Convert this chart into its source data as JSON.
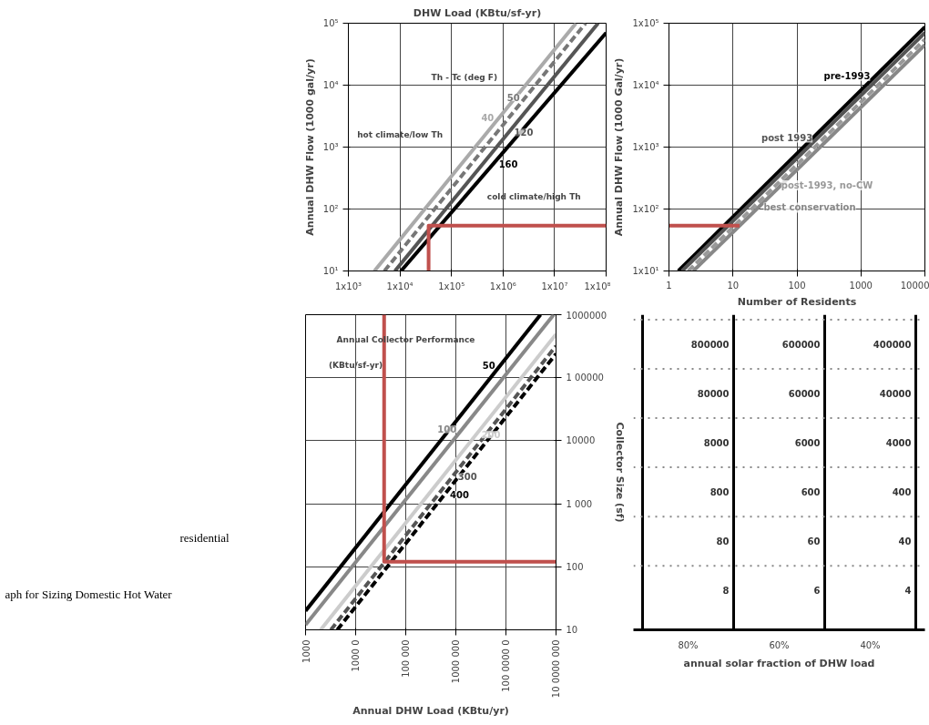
{
  "chart_data": [
    {
      "type": "line",
      "title": "DHW Load (KBtu/sf-yr)",
      "ylabel": "Annual DHW Flow (1000 gal/yr)",
      "log": "xy",
      "grid": true,
      "line_style": "solid",
      "xlim": [
        1000,
        100000000
      ],
      "ylim": [
        10,
        100000
      ],
      "xticks": [
        {
          "value": 1000,
          "label": "1x10³"
        },
        {
          "value": 10000,
          "label": "1x10⁴"
        },
        {
          "value": 100000,
          "label": "1x10⁵"
        },
        {
          "value": 1000000,
          "label": "1x10⁶"
        },
        {
          "value": 10000000,
          "label": "1x10⁷"
        },
        {
          "value": 100000000,
          "label": "1x10⁸"
        }
      ],
      "yticks": [
        {
          "value": 10,
          "label": "10¹"
        },
        {
          "value": 100,
          "label": "10²"
        },
        {
          "value": 1000,
          "label": "10³"
        },
        {
          "value": 10000,
          "label": "10⁴"
        },
        {
          "value": 100000,
          "label": "10⁵"
        }
      ],
      "series": [
        {
          "name": "40",
          "color": "#aaaaaa",
          "x": [
            3200,
            26000000
          ],
          "values": [
            10,
            100000
          ]
        },
        {
          "name": "50",
          "color": "#777777",
          "line_style": "dashed",
          "x": [
            5000,
            40000000
          ],
          "values": [
            10,
            100000
          ]
        },
        {
          "name": "120",
          "color": "#555555",
          "x": [
            8000,
            70000000
          ],
          "values": [
            10,
            100000
          ]
        },
        {
          "name": "160",
          "color": "#000000",
          "x": [
            10500,
            100000000
          ],
          "values": [
            10,
            70000
          ]
        },
        {
          "color": "#c0504d",
          "x": [
            36000,
            36000,
            100000000
          ],
          "values": [
            10,
            54,
            54
          ]
        }
      ],
      "annotations": [
        "Th - Tc (deg F)",
        "hot climate/low Th",
        "cold climate/high Th"
      ]
    },
    {
      "type": "line",
      "xlabel": "Number of Residents",
      "ylabel": "Annual DHW Flow (1000 Gal/yr)",
      "log": "xy",
      "grid": true,
      "line_style": "solid",
      "xlim": [
        1,
        10000
      ],
      "ylim": [
        10,
        100000
      ],
      "xticks": [
        1,
        10,
        100,
        1000,
        10000
      ],
      "yticks": [
        {
          "value": 10,
          "label": "1x10¹"
        },
        {
          "value": 100,
          "label": "1x10²"
        },
        {
          "value": 1000,
          "label": "1x10³"
        },
        {
          "value": 10000,
          "label": "1x10⁴"
        },
        {
          "value": 100000,
          "label": "1x10⁵"
        }
      ],
      "series": [
        {
          "name": "pre-1993",
          "color": "#000000",
          "x": [
            1.4,
            10000
          ],
          "values": [
            10,
            87000
          ]
        },
        {
          "name": "post 1993",
          "color": "#555555",
          "x": [
            1.6,
            10000
          ],
          "values": [
            10,
            70000
          ]
        },
        {
          "name": "post-1993, no-CW",
          "color": "#999999",
          "line_style": "dashed",
          "x": [
            2,
            10000
          ],
          "values": [
            10,
            55000
          ]
        },
        {
          "name": "best conservation",
          "color": "#888888",
          "x": [
            2.4,
            10000
          ],
          "values": [
            10,
            45000
          ]
        },
        {
          "color": "#c0504d",
          "x": [
            1,
            12.7
          ],
          "values": [
            54,
            54
          ]
        }
      ]
    },
    {
      "type": "line",
      "xlabel": "Annual DHW Load (KBtu/yr)",
      "ylabel": "Collector Size (sf)",
      "log": "xy",
      "grid": true,
      "line_style": "solid",
      "xlim": [
        1000,
        100000000
      ],
      "ylim": [
        10,
        1000000
      ],
      "xticks": [
        {
          "value": 1000,
          "label": "1000"
        },
        {
          "value": 10000,
          "label": "1000 0"
        },
        {
          "value": 100000,
          "label": "100 000"
        },
        {
          "value": 1000000,
          "label": "1000 000"
        },
        {
          "value": 10000000,
          "label": "100 0000 0"
        },
        {
          "value": 100000000,
          "label": "10 0000 000"
        }
      ],
      "yticks": [
        {
          "value": 10,
          "label": "10"
        },
        {
          "value": 100,
          "label": "100"
        },
        {
          "value": 1000,
          "label": "1 000"
        },
        {
          "value": 10000,
          "label": "10000"
        },
        {
          "value": 100000,
          "label": "1 00000"
        },
        {
          "value": 1000000,
          "label": "1000000"
        }
      ],
      "series": [
        {
          "name": "50",
          "color": "#000000",
          "x": [
            1000,
            49000000
          ],
          "values": [
            20,
            1000000
          ]
        },
        {
          "name": "100",
          "color": "#888888",
          "x": [
            1000,
            90000000
          ],
          "values": [
            12,
            1000000
          ]
        },
        {
          "name": "200",
          "color": "#cccccc",
          "x": [
            2000,
            100000000
          ],
          "values": [
            10,
            490000
          ]
        },
        {
          "name": "300",
          "color": "#555555",
          "line_style": "dashed",
          "x": [
            3200,
            100000000
          ],
          "values": [
            10,
            320000
          ]
        },
        {
          "name": "400",
          "color": "#000000",
          "line_style": "dashed",
          "x": [
            4300,
            100000000
          ],
          "values": [
            10,
            240000
          ]
        },
        {
          "color": "#c0504d",
          "x": [
            37000,
            37000,
            100000000
          ],
          "values": [
            1000000,
            120,
            120
          ]
        }
      ],
      "annotations": [
        "Annual Collector Performance",
        "(KBtu/sf-yr)"
      ]
    },
    {
      "type": "other",
      "xlabel": "annual solar fraction of DHW load",
      "categories": [
        "80%",
        "60%",
        "40%"
      ],
      "annotations": [
        "800000",
        "600000",
        "400000",
        "80000",
        "60000",
        "40000",
        "8000",
        "6000",
        "4000",
        "800",
        "600",
        "400",
        "80",
        "60",
        "40",
        "8",
        "6",
        "4"
      ]
    },
    {
      "type": "other",
      "annotations": [
        "residential",
        "aph for Sizing Domestic Hot Water"
      ]
    }
  ]
}
